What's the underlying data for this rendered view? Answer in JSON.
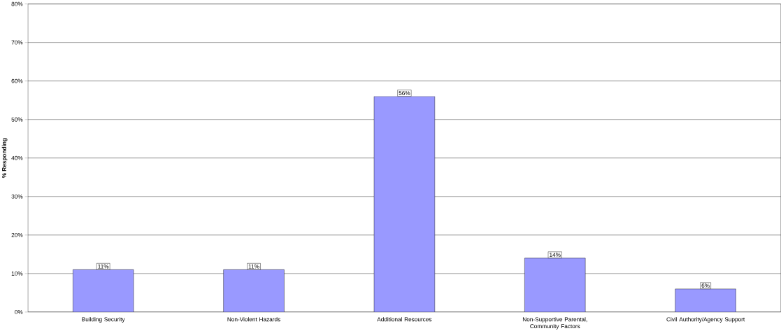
{
  "chart_data": {
    "type": "bar",
    "ylabel": "% Responding",
    "categories": [
      "Building Security",
      "Non-Violent Hazards",
      "Additional Resources",
      "Non-Supportive Parental, Community Factors",
      "Civil Authority/Agency Support"
    ],
    "values": [
      11,
      11,
      56,
      14,
      6
    ],
    "value_labels": [
      "11%",
      "11%",
      "56%",
      "14%",
      "6%"
    ],
    "color": "#9999ff",
    "ylim": [
      0,
      80
    ],
    "yticks": [
      {
        "value": 0,
        "label": "0%"
      },
      {
        "value": 10,
        "label": "10%"
      },
      {
        "value": 20,
        "label": "20%"
      },
      {
        "value": 30,
        "label": "30%"
      },
      {
        "value": 40,
        "label": "40%"
      },
      {
        "value": 50,
        "label": "50%"
      },
      {
        "value": 60,
        "label": "60%"
      },
      {
        "value": 70,
        "label": "70%"
      },
      {
        "value": 80,
        "label": "80%"
      }
    ],
    "grid": "y"
  }
}
